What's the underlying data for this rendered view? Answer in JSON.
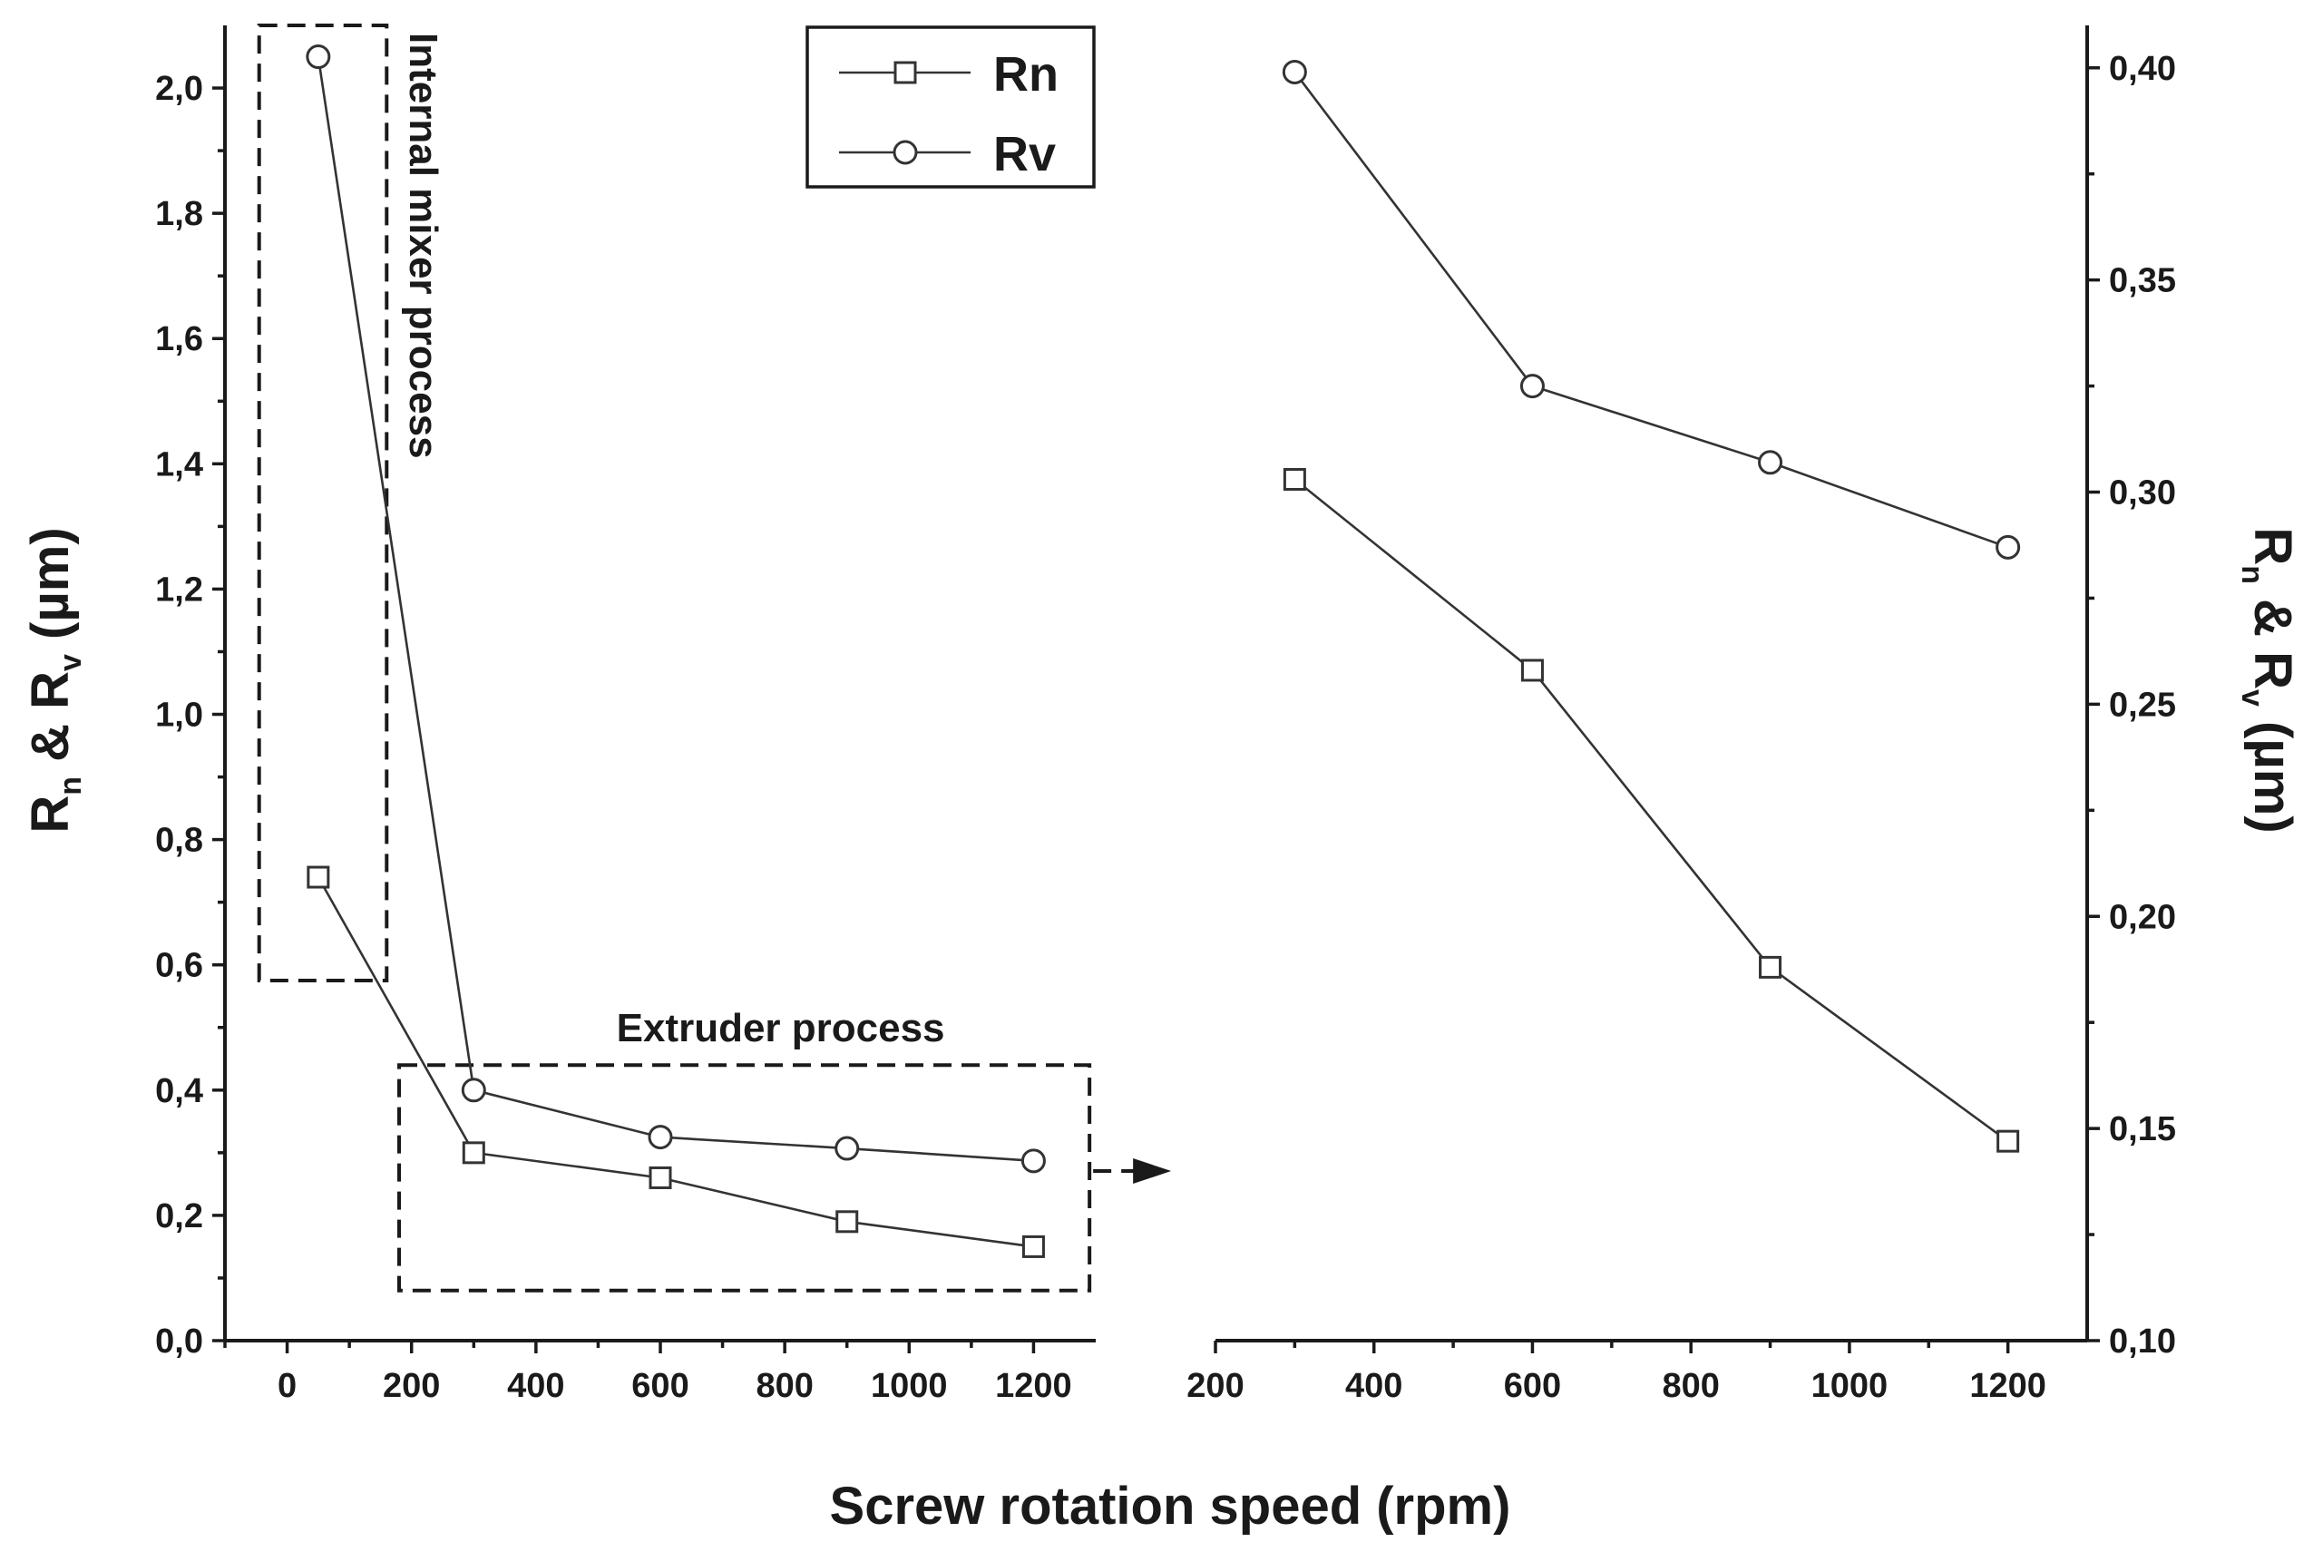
{
  "chart_data": {
    "type": "line",
    "xlabel": "Screw rotation speed (rpm)",
    "legend": [
      "Rn",
      "Rv"
    ],
    "legend_position": "top-center of left panel",
    "panels": [
      {
        "name": "left",
        "x": [
          50,
          300,
          600,
          900,
          1200
        ],
        "xlim": [
          -100,
          1300
        ],
        "xticks": [
          0,
          200,
          400,
          600,
          800,
          1000,
          1200
        ],
        "xtick_labels": [
          "0",
          "200",
          "400",
          "600",
          "800",
          "1000",
          "1200"
        ],
        "ylim": [
          0,
          2.1
        ],
        "yticks": [
          0.0,
          0.2,
          0.4,
          0.6,
          0.8,
          1.0,
          1.2,
          1.4,
          1.6,
          1.8,
          2.0
        ],
        "ytick_labels": [
          "0,0",
          "0,2",
          "0,4",
          "0,6",
          "0,8",
          "1,0",
          "1,2",
          "1,4",
          "1,6",
          "1,8",
          "2,0"
        ],
        "ylabel": {
          "main1": "R",
          "sub1": "n",
          "mid": " & R",
          "sub2": "v",
          "tail": " (µm)"
        },
        "series": [
          {
            "name": "Rn",
            "marker": "square",
            "values": [
              0.74,
              0.3,
              0.26,
              0.19,
              0.15
            ]
          },
          {
            "name": "Rv",
            "marker": "circle",
            "values": [
              2.05,
              0.4,
              0.325,
              0.307,
              0.287
            ]
          }
        ],
        "annotations": [
          {
            "text": "Internal mixer process",
            "box_x": [
              -45,
              160
            ],
            "box_y": [
              0.575,
              2.1
            ],
            "orientation": "vertical"
          },
          {
            "text": "Extruder process",
            "box_x": [
              180,
              1290
            ],
            "box_y": [
              0.08,
              0.44
            ],
            "arrow": "right"
          }
        ]
      },
      {
        "name": "right",
        "x": [
          300,
          600,
          900,
          1200
        ],
        "xlim": [
          200,
          1300
        ],
        "xticks": [
          200,
          400,
          600,
          800,
          1000,
          1200
        ],
        "xtick_labels": [
          "200",
          "400",
          "600",
          "800",
          "1000",
          "1200"
        ],
        "ylim": [
          0.1,
          0.41
        ],
        "yticks": [
          0.1,
          0.15,
          0.2,
          0.25,
          0.3,
          0.35,
          0.4
        ],
        "ytick_labels": [
          "0,10",
          "0,15",
          "0,20",
          "0,25",
          "0,30",
          "0,35",
          "0,40"
        ],
        "ylabel": {
          "main1": "R",
          "sub1": "n",
          "mid": " & R",
          "sub2": "v",
          "tail": " (µm)"
        },
        "series": [
          {
            "name": "Rn",
            "marker": "square",
            "values": [
              0.303,
              0.258,
              0.188,
              0.147
            ]
          },
          {
            "name": "Rv",
            "marker": "circle",
            "values": [
              0.399,
              0.325,
              0.307,
              0.287
            ]
          }
        ]
      }
    ]
  }
}
